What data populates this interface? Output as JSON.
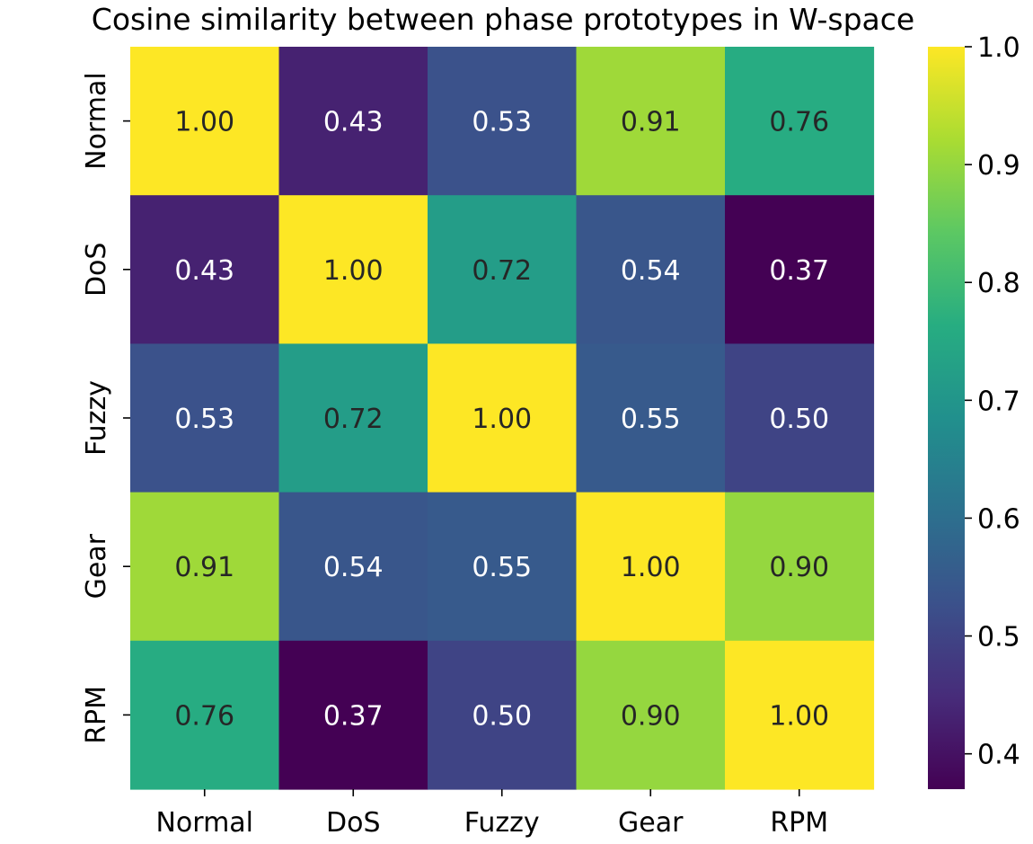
{
  "chart_data": {
    "type": "heatmap",
    "title": "Cosine similarity between phase prototypes in W-space",
    "xlabel": "",
    "ylabel": "",
    "x_categories": [
      "Normal",
      "DoS",
      "Fuzzy",
      "Gear",
      "RPM"
    ],
    "y_categories": [
      "Normal",
      "DoS",
      "Fuzzy",
      "Gear",
      "RPM"
    ],
    "values": [
      [
        1.0,
        0.43,
        0.53,
        0.91,
        0.76
      ],
      [
        0.43,
        1.0,
        0.72,
        0.54,
        0.37
      ],
      [
        0.53,
        0.72,
        1.0,
        0.55,
        0.5
      ],
      [
        0.91,
        0.54,
        0.55,
        1.0,
        0.9
      ],
      [
        0.76,
        0.37,
        0.5,
        0.9,
        1.0
      ]
    ],
    "value_format": "0.00",
    "colormap": "viridis",
    "vmin": 0.37,
    "vmax": 1.0,
    "colorbar": {
      "ticks": [
        0.4,
        0.5,
        0.6,
        0.7,
        0.8,
        0.9,
        1.0
      ],
      "tick_labels": [
        "0.4",
        "0.5",
        "0.6",
        "0.7",
        "0.8",
        "0.9",
        "1.0"
      ],
      "placement": "right"
    },
    "annotation_colors": {
      "dark": "#262626",
      "light": "#ffffff"
    }
  }
}
